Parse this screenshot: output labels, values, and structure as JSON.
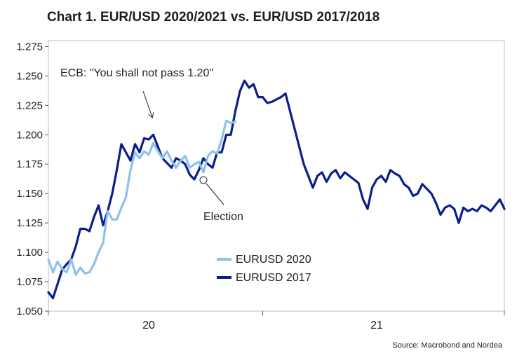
{
  "chart_data": {
    "type": "line",
    "title": "Chart 1. EUR/USD 2020/2021 vs. EUR/USD 2017/2018",
    "xlabel": "",
    "ylabel": "",
    "ylim": [
      1.05,
      1.28
    ],
    "xlim": [
      0,
      100
    ],
    "x_ticks": [
      {
        "label": "20",
        "x": 22
      },
      {
        "label": "21",
        "x": 72
      }
    ],
    "y_ticks": [
      "1.050",
      "1.075",
      "1.100",
      "1.125",
      "1.150",
      "1.175",
      "1.200",
      "1.225",
      "1.250",
      "1.275"
    ],
    "grid": false,
    "legend_position": "center",
    "series": [
      {
        "name": "EURUSD 2020",
        "color": "#8fc1ea",
        "x": [
          0,
          1,
          2,
          3,
          4,
          5,
          6,
          7,
          8,
          9,
          10,
          11,
          12,
          13,
          14,
          15,
          16,
          17,
          18,
          19,
          20,
          21,
          22,
          23,
          24,
          25,
          26,
          27,
          28,
          29,
          30,
          31,
          32,
          33,
          34,
          35,
          36,
          37,
          38,
          39,
          40,
          41
        ],
        "y": [
          1.094,
          1.083,
          1.092,
          1.086,
          1.083,
          1.094,
          1.081,
          1.087,
          1.082,
          1.083,
          1.09,
          1.1,
          1.108,
          1.135,
          1.128,
          1.128,
          1.138,
          1.147,
          1.17,
          1.185,
          1.18,
          1.186,
          1.183,
          1.193,
          1.186,
          1.18,
          1.186,
          1.178,
          1.172,
          1.178,
          1.182,
          1.172,
          1.175,
          1.177,
          1.168,
          1.182,
          1.186,
          1.184,
          1.196,
          1.212,
          1.21,
          1.211
        ]
      },
      {
        "name": "EURUSD 2017",
        "color": "#0a1e8c",
        "x": [
          0,
          1,
          2,
          3,
          4,
          5,
          6,
          7,
          8,
          9,
          10,
          11,
          12,
          13,
          14,
          15,
          16,
          17,
          18,
          19,
          20,
          21,
          22,
          23,
          24,
          25,
          26,
          27,
          28,
          29,
          30,
          31,
          32,
          33,
          34,
          35,
          36,
          37,
          38,
          39,
          40,
          41,
          42,
          43,
          44,
          45,
          46,
          47,
          48,
          49,
          50,
          51,
          52,
          53,
          54,
          55,
          56,
          57,
          58,
          59,
          60,
          61,
          62,
          63,
          64,
          65,
          66,
          67,
          68,
          69,
          70,
          71,
          72,
          73,
          74,
          75,
          76,
          77,
          78,
          79,
          80,
          81,
          82,
          83,
          84,
          85,
          86,
          87,
          88,
          89,
          90,
          91,
          92,
          93,
          94,
          95,
          96,
          97,
          98,
          99,
          100
        ],
        "y": [
          1.066,
          1.061,
          1.073,
          1.085,
          1.09,
          1.094,
          1.105,
          1.12,
          1.12,
          1.118,
          1.13,
          1.14,
          1.123,
          1.135,
          1.15,
          1.17,
          1.192,
          1.185,
          1.178,
          1.192,
          1.185,
          1.197,
          1.196,
          1.2,
          1.19,
          1.18,
          1.176,
          1.172,
          1.18,
          1.178,
          1.175,
          1.166,
          1.162,
          1.17,
          1.18,
          1.175,
          1.172,
          1.185,
          1.185,
          1.2,
          1.2,
          1.22,
          1.237,
          1.246,
          1.24,
          1.243,
          1.232,
          1.232,
          1.227,
          1.228,
          1.23,
          1.232,
          1.235,
          1.22,
          1.205,
          1.19,
          1.175,
          1.165,
          1.155,
          1.165,
          1.168,
          1.16,
          1.167,
          1.17,
          1.163,
          1.168,
          1.165,
          1.162,
          1.159,
          1.145,
          1.137,
          1.155,
          1.162,
          1.165,
          1.16,
          1.17,
          1.167,
          1.165,
          1.158,
          1.155,
          1.148,
          1.15,
          1.158,
          1.154,
          1.15,
          1.142,
          1.132,
          1.138,
          1.14,
          1.137,
          1.125,
          1.138,
          1.135,
          1.137,
          1.135,
          1.14,
          1.138,
          1.135,
          1.14,
          1.145,
          1.137
        ]
      }
    ],
    "annotations": [
      {
        "text": "ECB: \"You shall not pass 1.20\"",
        "target_x": 23,
        "target_y": 1.197
      },
      {
        "text": "Election",
        "target_x": 34,
        "target_y": 1.16
      }
    ],
    "source": "Source: Macrobond and Nordea"
  }
}
